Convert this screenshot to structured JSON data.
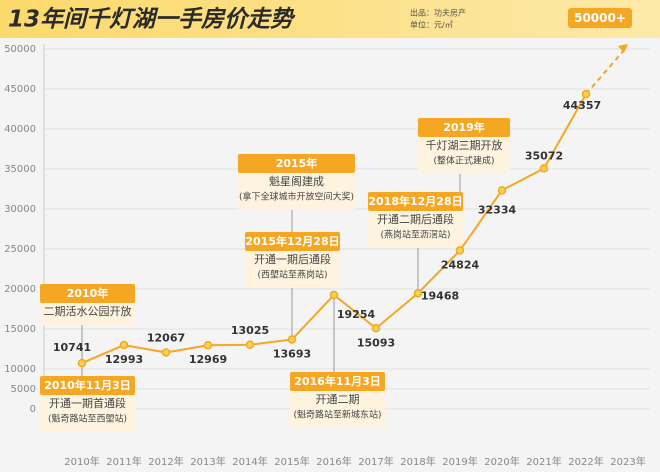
{
  "chart_data": {
    "type": "line",
    "title": "13年间千灯湖一手房价走势",
    "source": "出品：功夫房产",
    "unit_note": "单位：元/㎡",
    "categories": [
      "2010年",
      "2011年",
      "2012年",
      "2013年",
      "2014年",
      "2015年",
      "2016年",
      "2017年",
      "2018年",
      "2019年",
      "2020年",
      "2021年",
      "2022年",
      "2023年"
    ],
    "values": [
      10741,
      12993,
      12067,
      12969,
      13025,
      13693,
      19254,
      15093,
      19468,
      24824,
      32334,
      35072,
      44357,
      null
    ],
    "color": "#f5a623",
    "projection": {
      "value": 50000,
      "label": "50000+"
    },
    "ylim": [
      0,
      50000
    ],
    "yticks": [
      0,
      5000,
      10000,
      15000,
      20000,
      25000,
      30000,
      35000,
      40000,
      45000,
      50000
    ],
    "grid": true,
    "annotations": [
      {
        "title": "2010年",
        "lines": [
          "二期活水公园开放"
        ]
      },
      {
        "title": "2010年11月3日",
        "lines": [
          "开通一期首通段",
          "(魁奇路站至西塱站)"
        ]
      },
      {
        "title": "2015年",
        "lines": [
          "魁星阁建成",
          "(拿下全球城市开放空间大奖)"
        ]
      },
      {
        "title": "2015年12月28日",
        "lines": [
          "开通一期后通段",
          "(西塱站至燕岗站)"
        ]
      },
      {
        "title": "2016年11月3日",
        "lines": [
          "开通二期",
          "(魁奇路站至新城东站)"
        ]
      },
      {
        "title": "2018年12月28日",
        "lines": [
          "开通二期后通段",
          "(燕岗站至沥滘站)"
        ]
      },
      {
        "title": "2019年",
        "lines": [
          "千灯湖三期开放",
          "(整体正式建成)"
        ]
      }
    ]
  }
}
